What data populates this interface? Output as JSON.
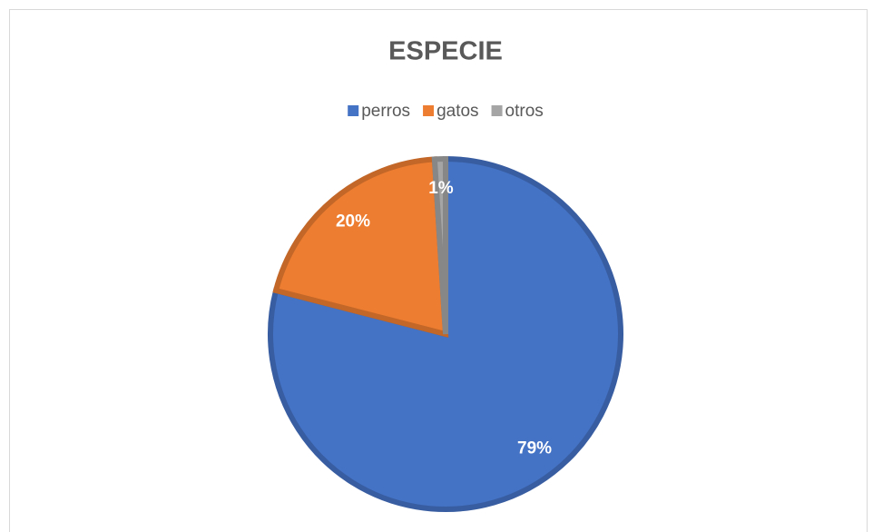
{
  "chart_data": {
    "type": "pie",
    "title": "ESPECIE",
    "categories": [
      "perros",
      "gatos",
      "otros"
    ],
    "values": [
      79,
      20,
      1
    ],
    "value_labels": [
      "79%",
      "20%",
      "1%"
    ],
    "colors": [
      "#4472c4",
      "#ed7d31",
      "#a5a5a5"
    ],
    "legend": "top"
  }
}
